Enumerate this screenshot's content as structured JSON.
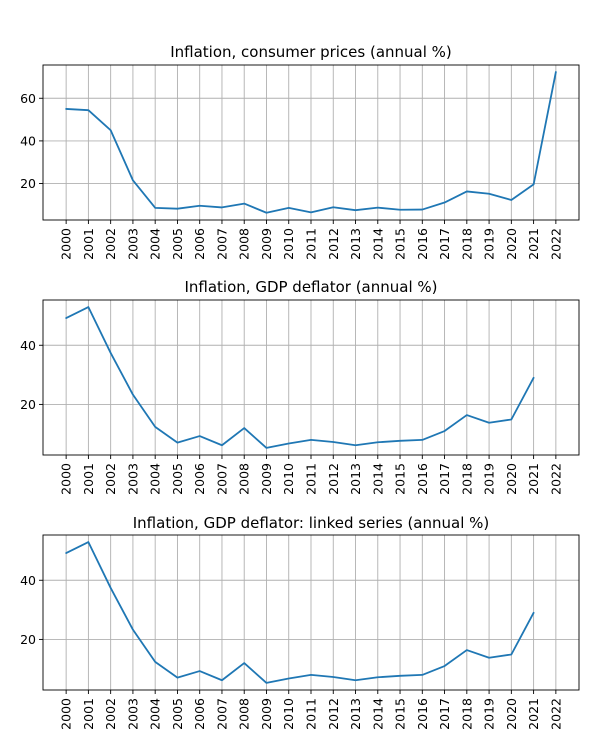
{
  "chart_data": [
    {
      "type": "line",
      "title": "Inflation, consumer prices (annual %)",
      "x": [
        "2000",
        "2001",
        "2002",
        "2003",
        "2004",
        "2005",
        "2006",
        "2007",
        "2008",
        "2009",
        "2010",
        "2011",
        "2012",
        "2013",
        "2014",
        "2015",
        "2016",
        "2017",
        "2018",
        "2019",
        "2020",
        "2021",
        "2022"
      ],
      "values": [
        55.0,
        54.4,
        45.0,
        21.5,
        8.6,
        8.2,
        9.6,
        8.8,
        10.6,
        6.3,
        8.6,
        6.5,
        8.9,
        7.5,
        8.7,
        7.7,
        7.8,
        11.1,
        16.3,
        15.2,
        12.3,
        19.6,
        72.3
      ],
      "x_ticks": [
        "2000",
        "2001",
        "2002",
        "2003",
        "2004",
        "2005",
        "2006",
        "2007",
        "2008",
        "2009",
        "2010",
        "2011",
        "2012",
        "2013",
        "2014",
        "2015",
        "2016",
        "2017",
        "2018",
        "2019",
        "2020",
        "2021",
        "2022"
      ],
      "y_ticks": [
        20,
        40,
        60
      ],
      "ylim": [
        2.9,
        75.6
      ],
      "grid": true,
      "color": "#1f77b4"
    },
    {
      "type": "line",
      "title": "Inflation, GDP deflator (annual %)",
      "x": [
        "2000",
        "2001",
        "2002",
        "2003",
        "2004",
        "2005",
        "2006",
        "2007",
        "2008",
        "2009",
        "2010",
        "2011",
        "2012",
        "2013",
        "2014",
        "2015",
        "2016",
        "2017",
        "2018",
        "2019",
        "2020",
        "2021"
      ],
      "values": [
        49.2,
        52.9,
        37.4,
        23.3,
        12.4,
        7.1,
        9.3,
        6.2,
        12.0,
        5.3,
        6.8,
        8.0,
        7.3,
        6.2,
        7.2,
        7.7,
        8.0,
        11.0,
        16.4,
        13.8,
        14.9,
        29.0
      ],
      "x_ticks": [
        "2000",
        "2001",
        "2002",
        "2003",
        "2004",
        "2005",
        "2006",
        "2007",
        "2008",
        "2009",
        "2010",
        "2011",
        "2012",
        "2013",
        "2014",
        "2015",
        "2016",
        "2017",
        "2018",
        "2019",
        "2020",
        "2021",
        "2022"
      ],
      "y_ticks": [
        20,
        40
      ],
      "ylim": [
        2.9,
        55.3
      ],
      "grid": true,
      "color": "#1f77b4"
    },
    {
      "type": "line",
      "title": "Inflation, GDP deflator: linked series (annual %)",
      "x": [
        "2000",
        "2001",
        "2002",
        "2003",
        "2004",
        "2005",
        "2006",
        "2007",
        "2008",
        "2009",
        "2010",
        "2011",
        "2012",
        "2013",
        "2014",
        "2015",
        "2016",
        "2017",
        "2018",
        "2019",
        "2020",
        "2021"
      ],
      "values": [
        49.2,
        52.9,
        37.4,
        23.3,
        12.4,
        7.1,
        9.3,
        6.2,
        12.0,
        5.3,
        6.8,
        8.0,
        7.3,
        6.2,
        7.2,
        7.7,
        8.0,
        11.0,
        16.4,
        13.8,
        14.9,
        29.0
      ],
      "x_ticks": [
        "2000",
        "2001",
        "2002",
        "2003",
        "2004",
        "2005",
        "2006",
        "2007",
        "2008",
        "2009",
        "2010",
        "2011",
        "2012",
        "2013",
        "2014",
        "2015",
        "2016",
        "2017",
        "2018",
        "2019",
        "2020",
        "2021",
        "2022"
      ],
      "y_ticks": [
        20,
        40
      ],
      "ylim": [
        2.9,
        55.3
      ],
      "grid": true,
      "color": "#1f77b4"
    }
  ]
}
